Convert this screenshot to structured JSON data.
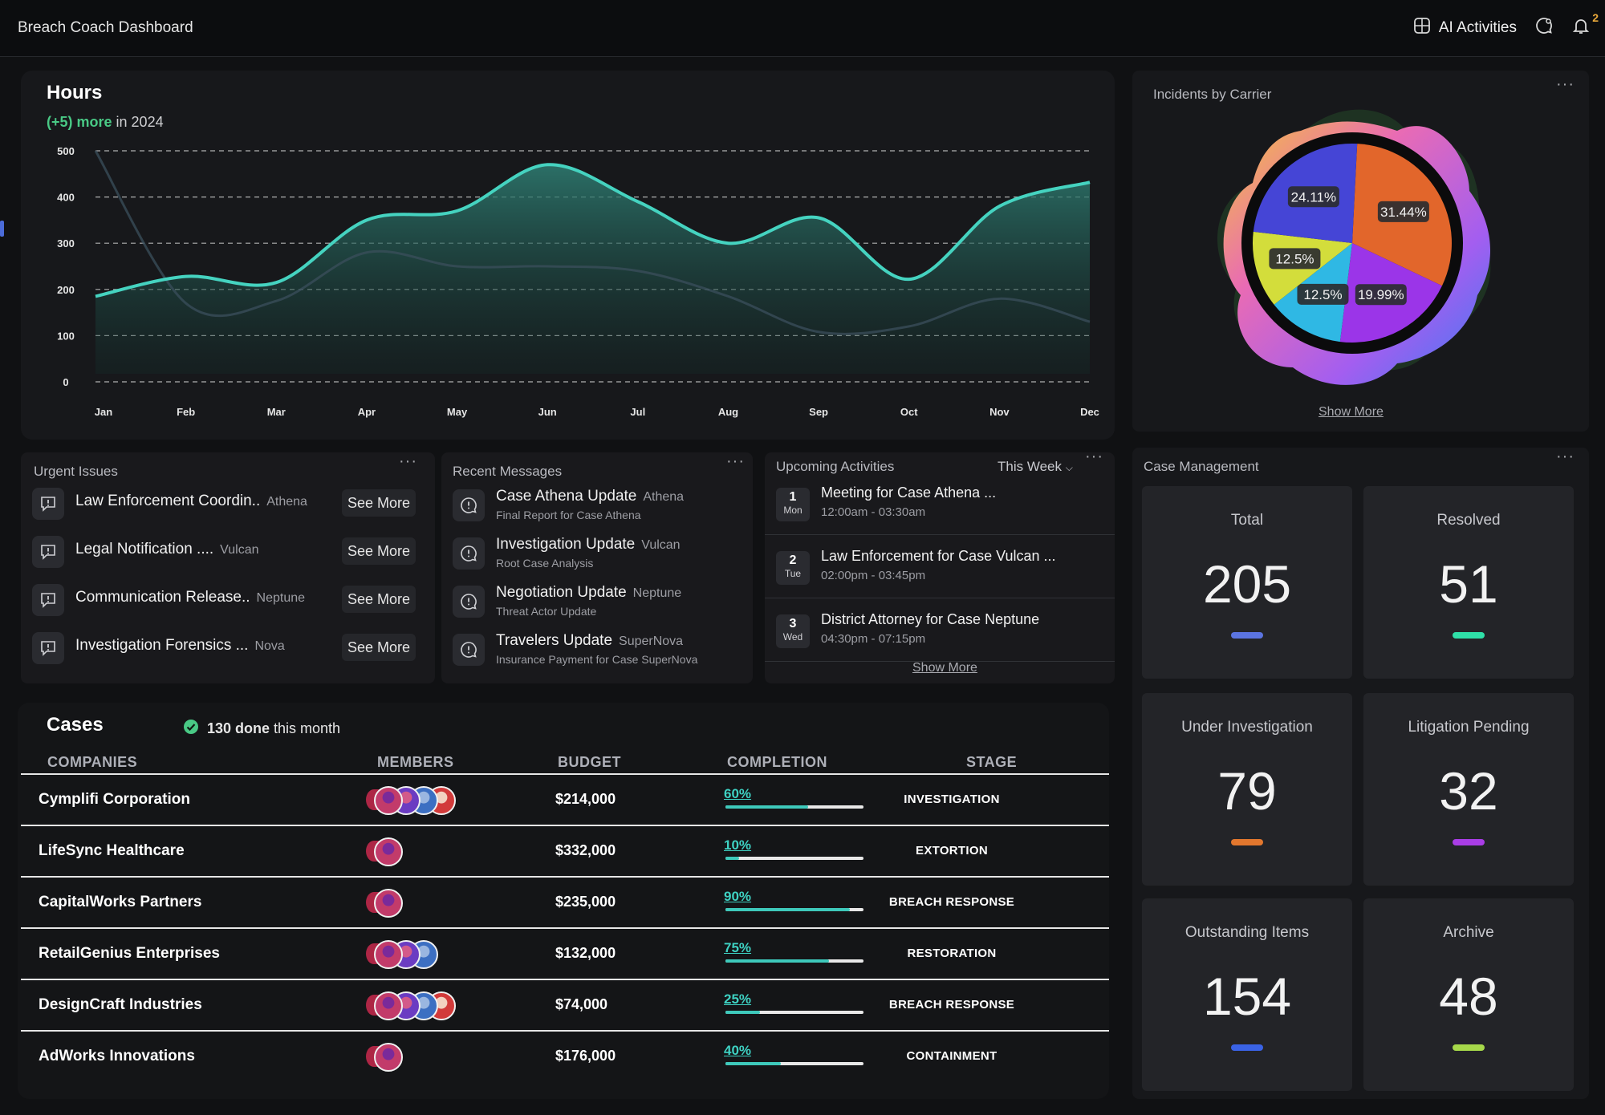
{
  "app": {
    "title": "Breach Coach Dashboard"
  },
  "header": {
    "ai_label": "AI Activities",
    "notification_count": "2"
  },
  "hours": {
    "title": "Hours",
    "subtitle_highlight": "(+5) more",
    "subtitle_rest": " in 2024"
  },
  "chart_data": {
    "type": "area",
    "title": "Hours",
    "categories": [
      "Jan",
      "Feb",
      "Mar",
      "Apr",
      "May",
      "Jun",
      "Jul",
      "Aug",
      "Sep",
      "Oct",
      "Nov",
      "Dec"
    ],
    "yticks": [
      "500",
      "400",
      "300",
      "200",
      "100",
      "0"
    ],
    "ylim": [
      0,
      500
    ],
    "grid": true,
    "series": [
      {
        "values": [
          185,
          228,
          215,
          350,
          370,
          470,
          390,
          300,
          355,
          222,
          380,
          432
        ]
      },
      {
        "values": [
          500,
          170,
          175,
          280,
          250,
          250,
          240,
          185,
          108,
          120,
          180,
          130
        ]
      }
    ]
  },
  "incidents": {
    "title": "Incidents by Carrier",
    "show_more": "Show More",
    "chart_data": {
      "type": "pie",
      "slices": [
        {
          "label": "31.44%",
          "value": 31.44,
          "color": "#e2662b"
        },
        {
          "label": "19.99%",
          "value": 19.99,
          "color": "#9b35e8"
        },
        {
          "label": "12.5%",
          "value": 12.5,
          "color": "#2fb8e4"
        },
        {
          "label": "12.5%",
          "value": 12.5,
          "color": "#d3dd3b"
        },
        {
          "label": "24.11%",
          "value": 24.11,
          "color": "#4545d6"
        }
      ]
    }
  },
  "urgent": {
    "title": "Urgent Issues",
    "items": [
      {
        "text": "Law Enforcement Coordin..",
        "tag": "Athena",
        "btn": "See More"
      },
      {
        "text": "Legal Notification ....",
        "tag": "Vulcan",
        "btn": "See More"
      },
      {
        "text": "Communication Release..",
        "tag": "Neptune",
        "btn": "See More"
      },
      {
        "text": "Investigation Forensics ...",
        "tag": "Nova",
        "btn": "See More"
      }
    ]
  },
  "messages": {
    "title": "Recent Messages",
    "items": [
      {
        "text": "Case Athena Update",
        "tag": "Athena",
        "sub": "Final Report for Case Athena"
      },
      {
        "text": "Investigation Update",
        "tag": "Vulcan",
        "sub": "Root Case Analysis"
      },
      {
        "text": "Negotiation Update",
        "tag": "Neptune",
        "sub": "Threat Actor Update"
      },
      {
        "text": "Travelers Update",
        "tag": "SuperNova",
        "sub": "Insurance Payment for Case SuperNova"
      }
    ]
  },
  "activities": {
    "title": "Upcoming Activities",
    "filter": "This Week",
    "show_more": "Show More",
    "items": [
      {
        "num": "1",
        "day": "Mon",
        "text": "Meeting for Case Athena ...",
        "time": "12:00am - 03:30am"
      },
      {
        "num": "2",
        "day": "Tue",
        "text": "Law Enforcement for Case Vulcan ...",
        "time": "02:00pm - 03:45pm"
      },
      {
        "num": "3",
        "day": "Wed",
        "text": "District Attorney  for Case Neptune",
        "time": "04:30pm - 07:15pm"
      }
    ]
  },
  "cases": {
    "title": "Cases",
    "done_bold": "130 done",
    "done_rest": " this month",
    "headers": {
      "companies": "COMPANIES",
      "members": "MEMBERS",
      "budget": "BUDGET",
      "completion": "COMPLETION",
      "stage": "STAGE"
    },
    "rows": [
      {
        "company": "Cymplifi Corporation",
        "members": 4,
        "budget": "$214,000",
        "completion": "60%",
        "progress": 0.6,
        "stage": "INVESTIGATION"
      },
      {
        "company": "LifeSync Healthcare",
        "members": 1,
        "budget": "$332,000",
        "completion": "10%",
        "progress": 0.1,
        "stage": "EXTORTION"
      },
      {
        "company": "CapitalWorks Partners",
        "members": 1,
        "budget": "$235,000",
        "completion": "90%",
        "progress": 0.9,
        "stage": "BREACH RESPONSE"
      },
      {
        "company": "RetailGenius Enterprises",
        "members": 3,
        "budget": "$132,000",
        "completion": "75%",
        "progress": 0.75,
        "stage": "RESTORATION"
      },
      {
        "company": "DesignCraft Industries",
        "members": 4,
        "budget": "$74,000",
        "completion": "25%",
        "progress": 0.25,
        "stage": "BREACH RESPONSE"
      },
      {
        "company": "AdWorks Innovations",
        "members": 1,
        "budget": "$176,000",
        "completion": "40%",
        "progress": 0.4,
        "stage": "CONTAINMENT"
      }
    ]
  },
  "case_mgmt": {
    "title": "Case Management",
    "stats": [
      {
        "label": "Total",
        "value": "205",
        "color": "#5b74e0"
      },
      {
        "label": "Resolved",
        "value": "51",
        "color": "#2fe0a8"
      },
      {
        "label": "Under Investigation",
        "value": "79",
        "color": "#e2772e"
      },
      {
        "label": "Litigation Pending",
        "value": "32",
        "color": "#a93de6"
      },
      {
        "label": "Outstanding Items",
        "value": "154",
        "color": "#3a63e6"
      },
      {
        "label": "Archive",
        "value": "48",
        "color": "#a6d84a"
      }
    ]
  }
}
